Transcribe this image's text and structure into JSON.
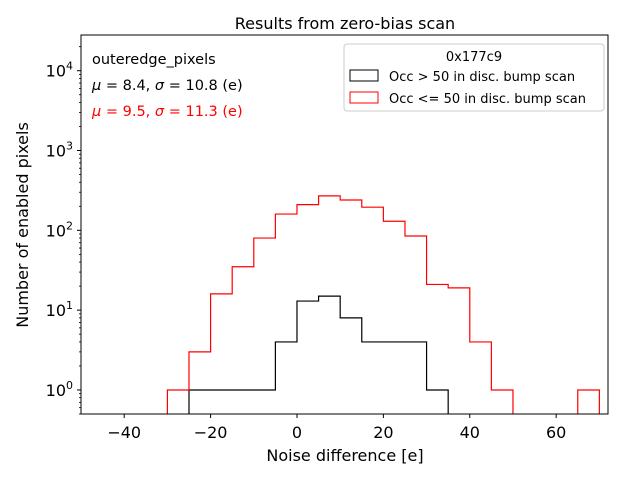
{
  "chart_data": {
    "type": "histogram",
    "title": "Results from zero-bias scan",
    "xlabel": "Noise difference [e]",
    "ylabel": "Number of enabled pixels",
    "xlim": [
      -50,
      72
    ],
    "ylim": [
      0.5,
      28000
    ],
    "yscale": "log",
    "x_ticks": [
      -40,
      -20,
      0,
      20,
      40,
      60
    ],
    "x_tick_labels": [
      "−40",
      "−20",
      "0",
      "20",
      "40",
      "60"
    ],
    "y_ticks": [
      {
        "value": 1,
        "base": "10",
        "exp": "0"
      },
      {
        "value": 10,
        "base": "10",
        "exp": "1"
      },
      {
        "value": 100,
        "base": "10",
        "exp": "2"
      },
      {
        "value": 1000,
        "base": "10",
        "exp": "3"
      },
      {
        "value": 10000,
        "base": "10",
        "exp": "4"
      }
    ],
    "annotations": {
      "region": "outeredge_pixels",
      "stats_black": {
        "mu_value": "8.4",
        "sigma_value": "10.8",
        "unit": "(e)",
        "color": "#000000"
      },
      "stats_red": {
        "mu_value": "9.5",
        "sigma_value": "11.3",
        "unit": "(e)",
        "color": "#ff0000"
      },
      "mu_symbol": "μ",
      "sigma_symbol": "σ",
      "eq": "="
    },
    "legend": {
      "title": "0x177c9",
      "placement": "top-right",
      "entries": [
        {
          "label": "Occ > 50 in disc. bump scan",
          "color": "#000000"
        },
        {
          "label": "Occ <= 50 in disc. bump scan",
          "color": "#ff0000"
        }
      ]
    },
    "series": [
      {
        "name": "Occ > 50 in disc. bump scan",
        "color": "#000000",
        "bins": [
          {
            "x0": -25,
            "x1": -5,
            "count": 1
          },
          {
            "x0": -5,
            "x1": 0,
            "count": 4
          },
          {
            "x0": 0,
            "x1": 5,
            "count": 13
          },
          {
            "x0": 5,
            "x1": 10,
            "count": 15
          },
          {
            "x0": 10,
            "x1": 15,
            "count": 8
          },
          {
            "x0": 15,
            "x1": 30,
            "count": 4
          },
          {
            "x0": 30,
            "x1": 35,
            "count": 1
          }
        ]
      },
      {
        "name": "Occ <= 50 in disc. bump scan",
        "color": "#ff0000",
        "bins": [
          {
            "x0": -30,
            "x1": -25,
            "count": 1
          },
          {
            "x0": -25,
            "x1": -20,
            "count": 3
          },
          {
            "x0": -20,
            "x1": -15,
            "count": 16
          },
          {
            "x0": -15,
            "x1": -10,
            "count": 35
          },
          {
            "x0": -10,
            "x1": -5,
            "count": 80
          },
          {
            "x0": -5,
            "x1": 0,
            "count": 160
          },
          {
            "x0": 0,
            "x1": 5,
            "count": 210
          },
          {
            "x0": 5,
            "x1": 10,
            "count": 270
          },
          {
            "x0": 10,
            "x1": 15,
            "count": 240
          },
          {
            "x0": 15,
            "x1": 20,
            "count": 195
          },
          {
            "x0": 20,
            "x1": 25,
            "count": 130
          },
          {
            "x0": 25,
            "x1": 30,
            "count": 85
          },
          {
            "x0": 30,
            "x1": 35,
            "count": 21
          },
          {
            "x0": 35,
            "x1": 40,
            "count": 19
          },
          {
            "x0": 40,
            "x1": 45,
            "count": 4
          },
          {
            "x0": 45,
            "x1": 50,
            "count": 1
          },
          {
            "x0": 65,
            "x1": 70,
            "count": 1
          }
        ]
      }
    ]
  }
}
